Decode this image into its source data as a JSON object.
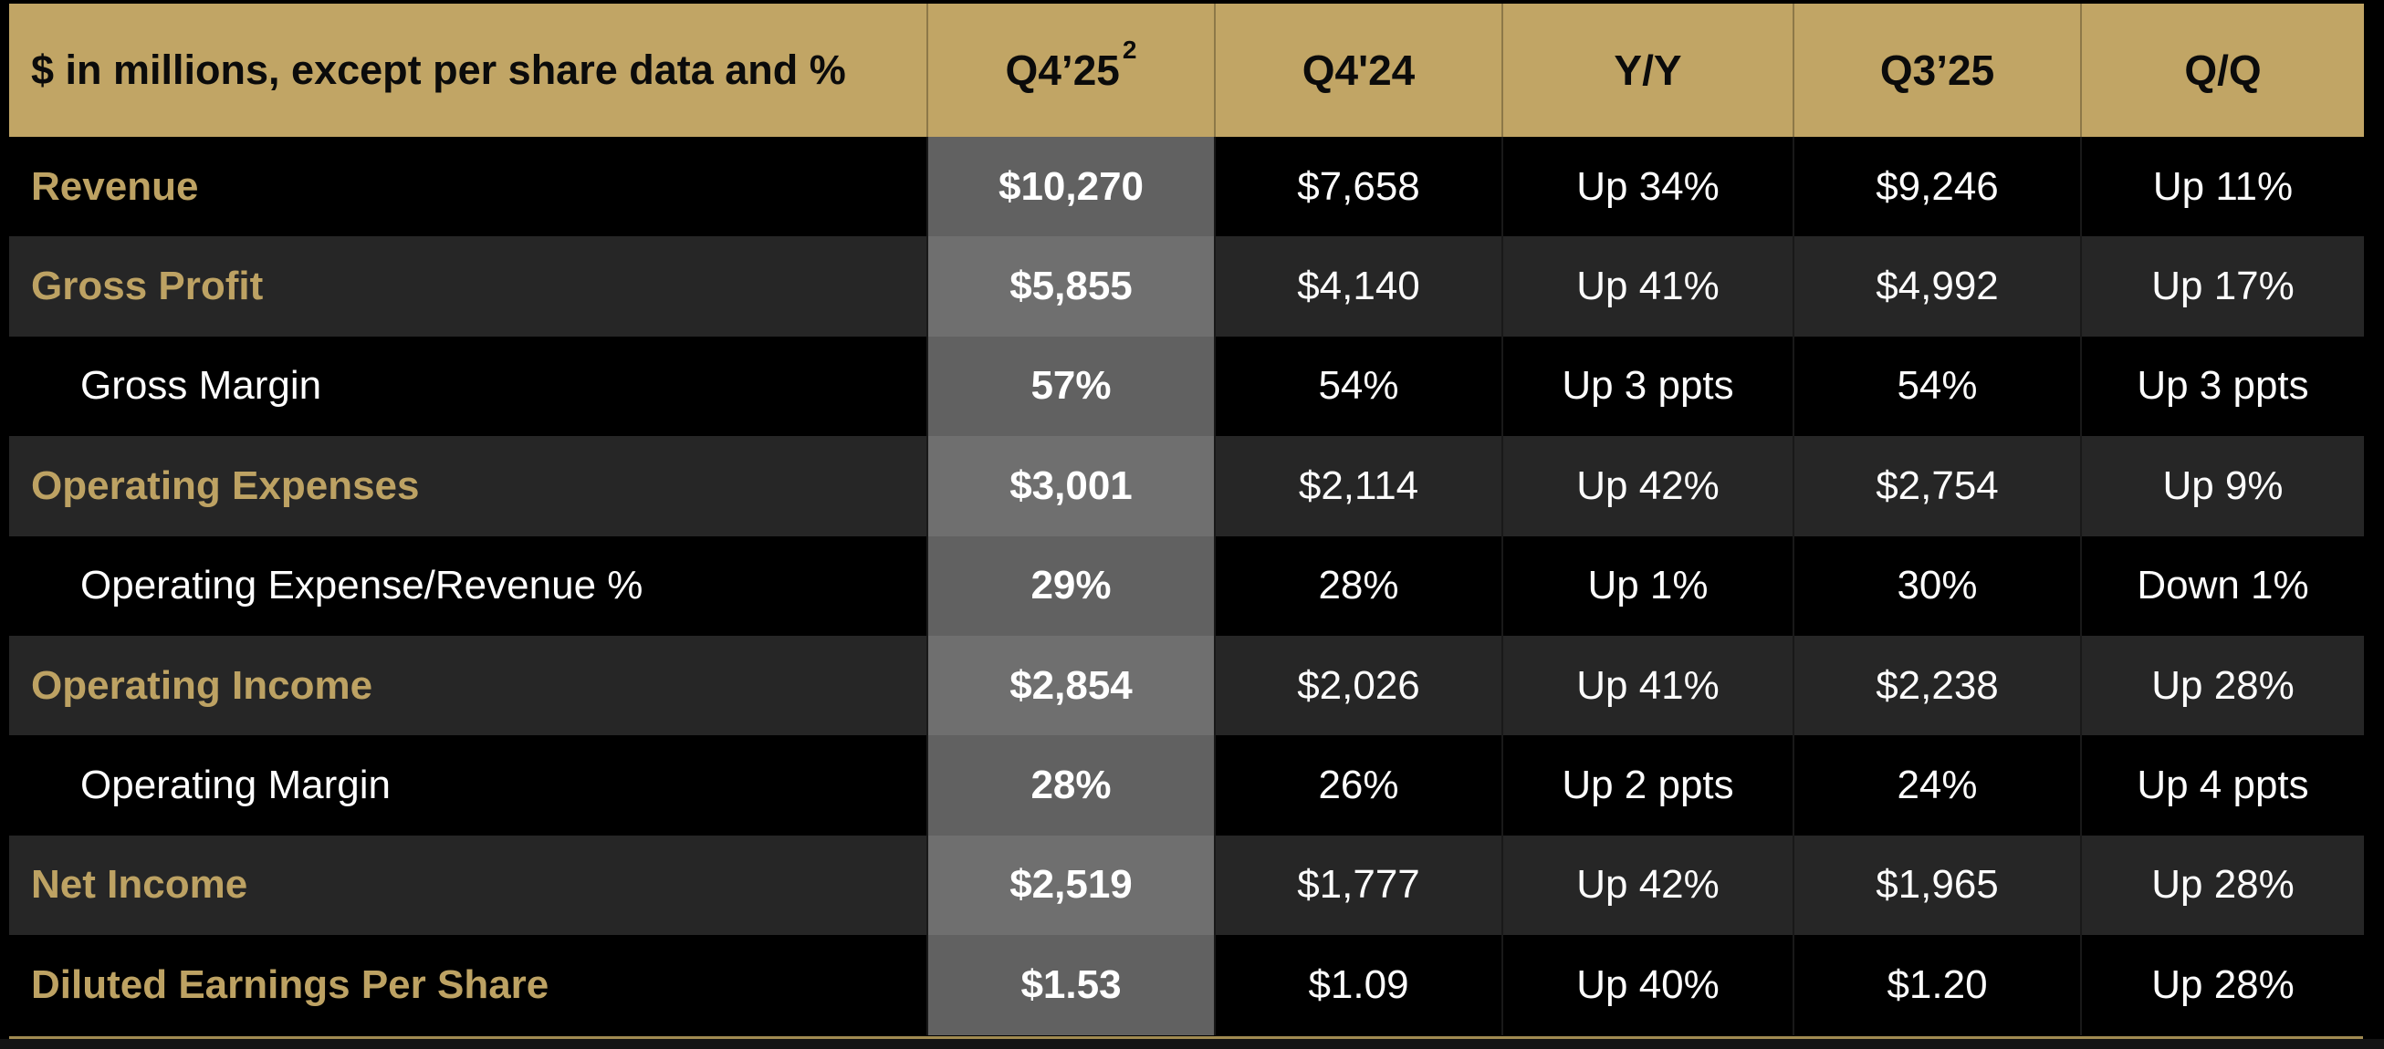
{
  "title": "Quarterly financial results summary table",
  "theme": {
    "page_bg": "#000000",
    "header_gold": "#c1a565",
    "header_text": "#0b0b0b",
    "header_divider": "#8d7848",
    "label_gold": "#bda263",
    "row_black": "#000000",
    "row_dark": "#262626",
    "body_divider": "#191919",
    "value_text": "#fcfcfc",
    "highlight_overlay": "rgba(153,153,153,0.63)",
    "bottom_line_gold": "#a18b52",
    "bottom_strip": "#141414"
  },
  "table": {
    "header": {
      "label": "$ in millions, except per share data and %",
      "columns": [
        {
          "label": "Q4’25",
          "superscript": "2"
        },
        {
          "label": "Q4'24",
          "superscript": ""
        },
        {
          "label": "Y/Y",
          "superscript": ""
        },
        {
          "label": "Q3’25",
          "superscript": ""
        },
        {
          "label": "Q/Q",
          "superscript": ""
        }
      ]
    },
    "rows": [
      {
        "label": "Revenue",
        "style": "primary",
        "values": [
          "$10,270",
          "$7,658",
          "Up 34%",
          "$9,246",
          "Up 11%"
        ]
      },
      {
        "label": "Gross Profit",
        "style": "primary",
        "values": [
          "$5,855",
          "$4,140",
          "Up 41%",
          "$4,992",
          "Up 17%"
        ]
      },
      {
        "label": "Gross Margin",
        "style": "sub",
        "values": [
          "57%",
          "54%",
          "Up 3 ppts",
          "54%",
          "Up 3 ppts"
        ]
      },
      {
        "label": "Operating Expenses",
        "style": "primary",
        "values": [
          "$3,001",
          "$2,114",
          "Up 42%",
          "$2,754",
          "Up 9%"
        ]
      },
      {
        "label": "Operating Expense/Revenue %",
        "style": "sub",
        "values": [
          "29%",
          "28%",
          "Up 1%",
          "30%",
          "Down 1%"
        ]
      },
      {
        "label": "Operating Income",
        "style": "primary",
        "values": [
          "$2,854",
          "$2,026",
          "Up 41%",
          "$2,238",
          "Up 28%"
        ]
      },
      {
        "label": "Operating Margin",
        "style": "sub",
        "values": [
          "28%",
          "26%",
          "Up 2 ppts",
          "24%",
          "Up 4 ppts"
        ]
      },
      {
        "label": "Net Income",
        "style": "primary",
        "values": [
          "$2,519",
          "$1,777",
          "Up 42%",
          "$1,965",
          "Up 28%"
        ]
      },
      {
        "label": "Diluted Earnings Per Share",
        "style": "primary",
        "values": [
          "$1.53",
          "$1.09",
          "Up 40%",
          "$1.20",
          "Up 28%"
        ]
      }
    ]
  },
  "chart_data": {
    "type": "table",
    "title": "Quarterly financial results ($ in millions, except per share data and %)",
    "highlighted_column": "Q4’25",
    "footnote_marker_on": "Q4’25",
    "columns": [
      "$ in millions, except per share data and %",
      "Q4’25²",
      "Q4'24",
      "Y/Y",
      "Q3’25",
      "Q/Q"
    ],
    "rows": [
      [
        "Revenue",
        "$10,270",
        "$7,658",
        "Up 34%",
        "$9,246",
        "Up 11%"
      ],
      [
        "Gross Profit",
        "$5,855",
        "$4,140",
        "Up 41%",
        "$4,992",
        "Up 17%"
      ],
      [
        "Gross Margin",
        "57%",
        "54%",
        "Up 3 ppts",
        "54%",
        "Up 3 ppts"
      ],
      [
        "Operating Expenses",
        "$3,001",
        "$2,114",
        "Up 42%",
        "$2,754",
        "Up 9%"
      ],
      [
        "Operating Expense/Revenue %",
        "29%",
        "28%",
        "Up 1%",
        "30%",
        "Down 1%"
      ],
      [
        "Operating Income",
        "$2,854",
        "$2,026",
        "Up 41%",
        "$2,238",
        "Up 28%"
      ],
      [
        "Operating Margin",
        "28%",
        "26%",
        "Up 2 ppts",
        "24%",
        "Up 4 ppts"
      ],
      [
        "Net Income",
        "$2,519",
        "$1,777",
        "Up 42%",
        "$1,965",
        "Up 28%"
      ],
      [
        "Diluted Earnings Per Share",
        "$1.53",
        "$1.09",
        "Up 40%",
        "$1.20",
        "Up 28%"
      ]
    ]
  }
}
